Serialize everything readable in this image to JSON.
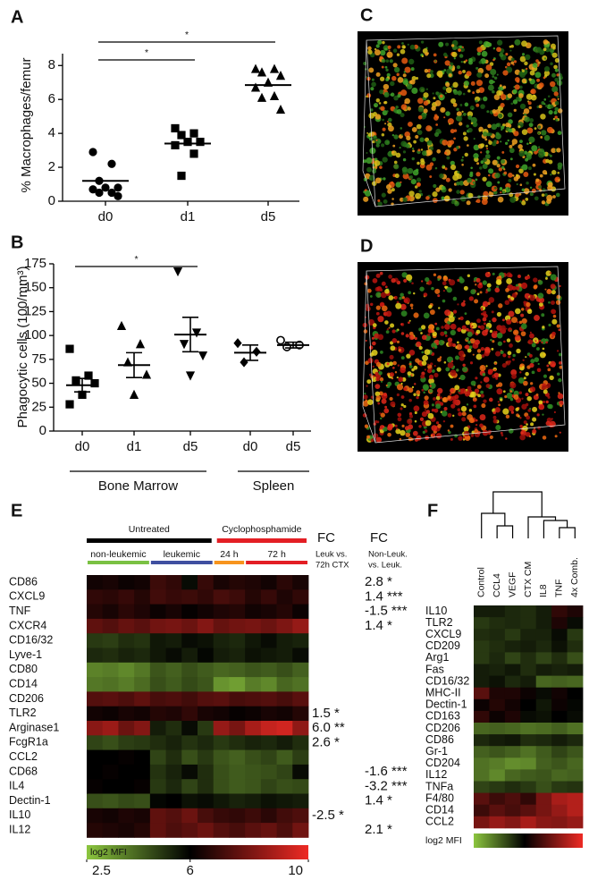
{
  "chart_data": [
    {
      "type": "dot",
      "panel": "A",
      "y_label": "% Macrophages/femur",
      "categories": [
        "d0",
        "d1",
        "d5"
      ],
      "points": [
        [
          2.9,
          2.2,
          1.2,
          0.8,
          0.8,
          0.7,
          0.5,
          0.5,
          0.3
        ],
        [
          4.3,
          4.0,
          3.9,
          3.5,
          3.5,
          3.3,
          2.8,
          1.5
        ],
        [
          7.8,
          7.8,
          7.6,
          7.4,
          7.0,
          6.7,
          6.2,
          6.1,
          5.4
        ]
      ],
      "means": [
        1.2,
        3.4,
        6.85
      ],
      "markers": [
        "circle",
        "square",
        "triangle"
      ],
      "color": "#000000",
      "ylim": [
        0,
        8.7
      ],
      "yticks": [
        0,
        2,
        4,
        6,
        8
      ],
      "significance": [
        {
          "from": 0,
          "to": 1,
          "label": "*"
        },
        {
          "from": 0,
          "to": 2,
          "label": "*"
        }
      ]
    },
    {
      "type": "dot",
      "panel": "B",
      "y_label": "Phagocytic cells (100/mm³)",
      "categories": [
        "d0",
        "d1",
        "d5",
        "d0",
        "d5"
      ],
      "points": [
        [
          86,
          58,
          53,
          50,
          38,
          28
        ],
        [
          110,
          91,
          72,
          59,
          38
        ],
        [
          167,
          103,
          91,
          79,
          58
        ],
        [
          92,
          83,
          72
        ],
        [
          95,
          90,
          88
        ]
      ],
      "means": [
        48,
        69,
        101,
        82,
        90
      ],
      "sem": [
        7,
        13,
        18,
        8,
        3
      ],
      "markers": [
        "square",
        "triangle",
        "triangle-down",
        "diamond",
        "circle-open"
      ],
      "color": "#000000",
      "ylim": [
        0,
        175
      ],
      "yticks": [
        0,
        25,
        50,
        75,
        100,
        125,
        150,
        175
      ],
      "significance": [
        {
          "from": 0,
          "to": 2,
          "label": "*"
        }
      ],
      "groups": [
        {
          "label": "Bone Marrow",
          "from": 0,
          "to": 2
        },
        {
          "label": "Spleen",
          "from": 3,
          "to": 4
        }
      ]
    },
    {
      "type": "heatmap",
      "panel": "E",
      "header_groups": [
        {
          "label": "Untreated",
          "color": "#000000",
          "span": 8
        },
        {
          "label": "Cyclophosphamide",
          "color": "#e31e24",
          "span": 6
        }
      ],
      "column_groups": [
        {
          "label": "non-leukemic",
          "color": "#7ac143",
          "span": 4
        },
        {
          "label": "leukemic",
          "color": "#3f4fa0",
          "span": 4
        },
        {
          "label": "24 h",
          "color": "#f7941d",
          "span": 2
        },
        {
          "label": "72 h",
          "color": "#e31e24",
          "span": 4
        }
      ],
      "rows": [
        "CD86",
        "CXCL9",
        "TNF",
        "CXCR4",
        "CD16/32",
        "Lyve-1",
        "CD80",
        "CD14",
        "CD206",
        "TLR2",
        "Arginase1",
        "FcgR1a",
        "CCL2",
        "CD68",
        "IL4",
        "Dectin-1",
        "IL10",
        "IL12"
      ],
      "values": [
        [
          6.3,
          6.4,
          6.2,
          6.3,
          7.0,
          6.8,
          5.8,
          6.9,
          6.4,
          6.6,
          6.5,
          6.3,
          6.7,
          6.4
        ],
        [
          6.8,
          6.7,
          6.9,
          6.6,
          7.1,
          6.9,
          7.0,
          6.8,
          7.2,
          7.0,
          6.6,
          6.9,
          6.5,
          6.8
        ],
        [
          6.6,
          6.4,
          6.7,
          6.5,
          6.2,
          6.4,
          6.1,
          6.3,
          6.5,
          6.6,
          6.3,
          6.4,
          6.6,
          6.2
        ],
        [
          7.6,
          7.4,
          7.7,
          7.5,
          7.9,
          8.0,
          7.8,
          8.2,
          7.7,
          7.9,
          8.0,
          7.8,
          8.1,
          8.5
        ],
        [
          5.0,
          4.9,
          5.2,
          5.1,
          5.6,
          5.5,
          5.8,
          5.7,
          5.4,
          5.3,
          5.6,
          5.8,
          5.5,
          5.4
        ],
        [
          5.3,
          5.2,
          5.4,
          5.3,
          5.6,
          5.8,
          5.5,
          5.9,
          5.5,
          5.4,
          5.7,
          5.6,
          5.5,
          5.8
        ],
        [
          3.7,
          3.8,
          3.6,
          3.9,
          4.5,
          4.3,
          4.6,
          4.4,
          4.2,
          4.3,
          4.5,
          4.4,
          4.6,
          4.3
        ],
        [
          3.9,
          4.0,
          3.8,
          4.1,
          4.6,
          4.4,
          4.7,
          4.5,
          3.4,
          3.2,
          3.8,
          3.6,
          4.2,
          4.0
        ],
        [
          7.4,
          7.5,
          7.3,
          7.6,
          7.2,
          7.3,
          7.1,
          7.4,
          7.5,
          7.2,
          7.3,
          7.4,
          7.2,
          7.5
        ],
        [
          6.3,
          6.2,
          6.4,
          6.3,
          6.6,
          6.5,
          6.8,
          6.4,
          6.3,
          6.1,
          6.2,
          6.4,
          6.3,
          6.6
        ],
        [
          8.3,
          8.6,
          7.8,
          8.2,
          5.5,
          5.2,
          5.8,
          5.0,
          8.5,
          8.0,
          8.8,
          9.3,
          9.5,
          8.4
        ],
        [
          4.8,
          4.6,
          4.9,
          5.0,
          5.2,
          5.4,
          5.1,
          5.3,
          5.0,
          5.2,
          5.4,
          5.3,
          5.5,
          5.2
        ],
        [
          6.0,
          6.0,
          6.1,
          6.0,
          4.8,
          5.2,
          4.6,
          5.0,
          4.5,
          4.3,
          4.6,
          4.8,
          4.4,
          4.9
        ],
        [
          6.0,
          6.1,
          6.0,
          6.0,
          5.1,
          5.4,
          5.8,
          5.2,
          4.6,
          4.4,
          4.5,
          4.6,
          4.8,
          5.8
        ],
        [
          6.1,
          6.0,
          6.0,
          6.1,
          5.0,
          5.3,
          4.8,
          5.2,
          4.6,
          4.4,
          4.5,
          4.8,
          4.6,
          4.7
        ],
        [
          4.6,
          4.5,
          4.7,
          4.6,
          5.9,
          6.0,
          5.7,
          5.8,
          5.6,
          5.4,
          5.5,
          5.7,
          5.6,
          5.5
        ],
        [
          6.4,
          6.3,
          6.5,
          6.4,
          7.6,
          7.4,
          7.8,
          7.2,
          6.9,
          6.8,
          7.0,
          6.7,
          7.1,
          7.3
        ],
        [
          6.6,
          6.5,
          6.4,
          6.6,
          7.6,
          7.3,
          7.5,
          7.8,
          7.4,
          7.2,
          7.5,
          7.7,
          7.3,
          7.9
        ]
      ],
      "annotations": [
        {
          "title": "FC",
          "subtitle": [
            "Leuk vs.",
            "72h CTX"
          ],
          "labels": [
            null,
            null,
            null,
            null,
            null,
            null,
            null,
            null,
            null,
            "1.5 *",
            "6.0 **",
            "2.6 *",
            null,
            null,
            null,
            null,
            "-2.5 *",
            null
          ]
        },
        {
          "title": "FC",
          "subtitle": [
            "Non-Leuk.",
            "vs. Leuk."
          ],
          "labels": [
            "2.8 *",
            "1.4 ***",
            "-1.5 ***",
            "1.4 *",
            null,
            null,
            null,
            null,
            null,
            null,
            null,
            null,
            null,
            "-1.6 ***",
            "-3.2 ***",
            "1.4 *",
            null,
            "2.1 *"
          ]
        }
      ],
      "colorbar_label": "log2 MFI",
      "clim": [
        2.5,
        10
      ],
      "cticks": [
        2.5,
        6,
        10
      ],
      "color_stops": [
        2.5,
        6,
        10
      ],
      "colors": [
        "#8cc63f",
        "#000000",
        "#ee2a24"
      ]
    },
    {
      "type": "heatmap",
      "panel": "F",
      "columns": [
        "Control",
        "CCL4",
        "VEGF",
        "CTX CM",
        "IL8",
        "TNF",
        "4x Comb."
      ],
      "rows": [
        "IL10",
        "TLR2",
        "CXCL9",
        "CD209",
        "Arg1",
        "Fas",
        "CD16/32",
        "MHC-II",
        "Dectin-1",
        "CD163",
        "CD206",
        "CD86",
        "Gr-1",
        "CD204",
        "IL12",
        "TNFa",
        "F4/80",
        "CD14",
        "CCL2"
      ],
      "values": [
        [
          5.5,
          5.5,
          5.3,
          5.2,
          5.5,
          6.8,
          6.5
        ],
        [
          5.0,
          5.2,
          5.3,
          5.2,
          5.5,
          6.5,
          5.8
        ],
        [
          5.2,
          5.3,
          5.0,
          5.4,
          5.4,
          5.8,
          5.0
        ],
        [
          5.0,
          5.2,
          5.4,
          5.5,
          5.3,
          5.7,
          5.2
        ],
        [
          5.0,
          5.3,
          4.8,
          5.2,
          4.8,
          5.2,
          4.6
        ],
        [
          5.5,
          5.4,
          5.6,
          5.2,
          5.5,
          5.4,
          5.5
        ],
        [
          5.5,
          5.7,
          5.3,
          5.5,
          4.2,
          4.3,
          4.2
        ],
        [
          7.5,
          6.5,
          6.5,
          6.2,
          5.8,
          6.3,
          6.0
        ],
        [
          6.2,
          6.6,
          6.3,
          6.0,
          5.6,
          6.2,
          5.9
        ],
        [
          6.8,
          6.2,
          6.5,
          5.8,
          5.7,
          6.0,
          5.8
        ],
        [
          4.2,
          4.3,
          4.2,
          4.0,
          4.1,
          4.3,
          4.0
        ],
        [
          5.3,
          5.5,
          5.6,
          5.2,
          5.3,
          5.5,
          5.3
        ],
        [
          4.3,
          4.5,
          4.3,
          4.0,
          4.4,
          4.8,
          4.5
        ],
        [
          4.0,
          3.8,
          3.5,
          3.6,
          4.3,
          4.5,
          4.2
        ],
        [
          4.0,
          3.6,
          4.2,
          4.4,
          4.5,
          4.2,
          4.3
        ],
        [
          4.8,
          5.0,
          5.2,
          5.0,
          4.6,
          5.0,
          5.1
        ],
        [
          7.5,
          7.0,
          7.3,
          6.8,
          8.0,
          8.8,
          9.0
        ],
        [
          7.0,
          7.5,
          7.2,
          7.5,
          8.0,
          8.5,
          9.0
        ],
        [
          8.0,
          8.5,
          8.2,
          8.8,
          8.3,
          8.2,
          8.5
        ]
      ],
      "colorbar_label": "log2 MFI",
      "clim": [
        2.5,
        10
      ],
      "color_stops": [
        2.5,
        6,
        10
      ],
      "colors": [
        "#8cc63f",
        "#000000",
        "#ee2a24"
      ]
    }
  ],
  "images": [
    {
      "panel": "C"
    },
    {
      "panel": "D"
    }
  ]
}
